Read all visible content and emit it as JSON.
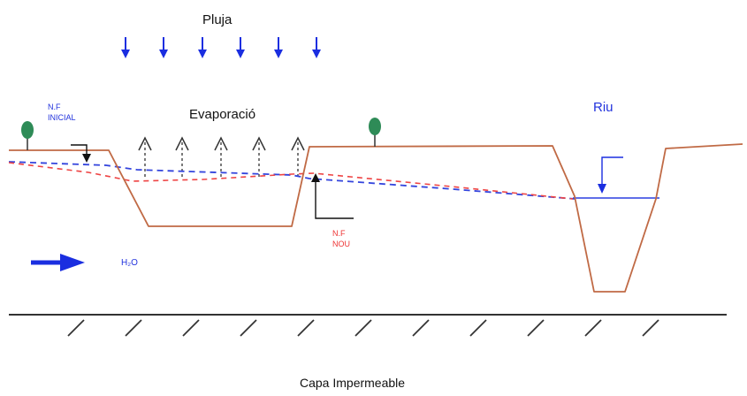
{
  "labels": {
    "rain": "Pluja",
    "evaporation": "Evaporació",
    "initial_water_table_line1": "N.F",
    "initial_water_table_line2": "INICIAL",
    "new_water_table_line1": "N.F",
    "new_water_table_line2": "NOU",
    "river": "Riu",
    "water": "H₂O",
    "impermeable_layer": "Capa Impermeable"
  },
  "colors": {
    "terrain": "#c06a45",
    "initial_water_table": "#3344dd",
    "new_water_table": "#ee4444",
    "rain_arrows": "#1a2ee0",
    "evaporation_arrows": "#333333",
    "flow_arrow": "#1a2ee0",
    "tree": "#2e8b57",
    "impermeable_layer": "#333333"
  },
  "icons": [
    "tree-icon",
    "rain-arrow-icon",
    "evaporation-arrow-icon",
    "flow-arrow-icon"
  ]
}
